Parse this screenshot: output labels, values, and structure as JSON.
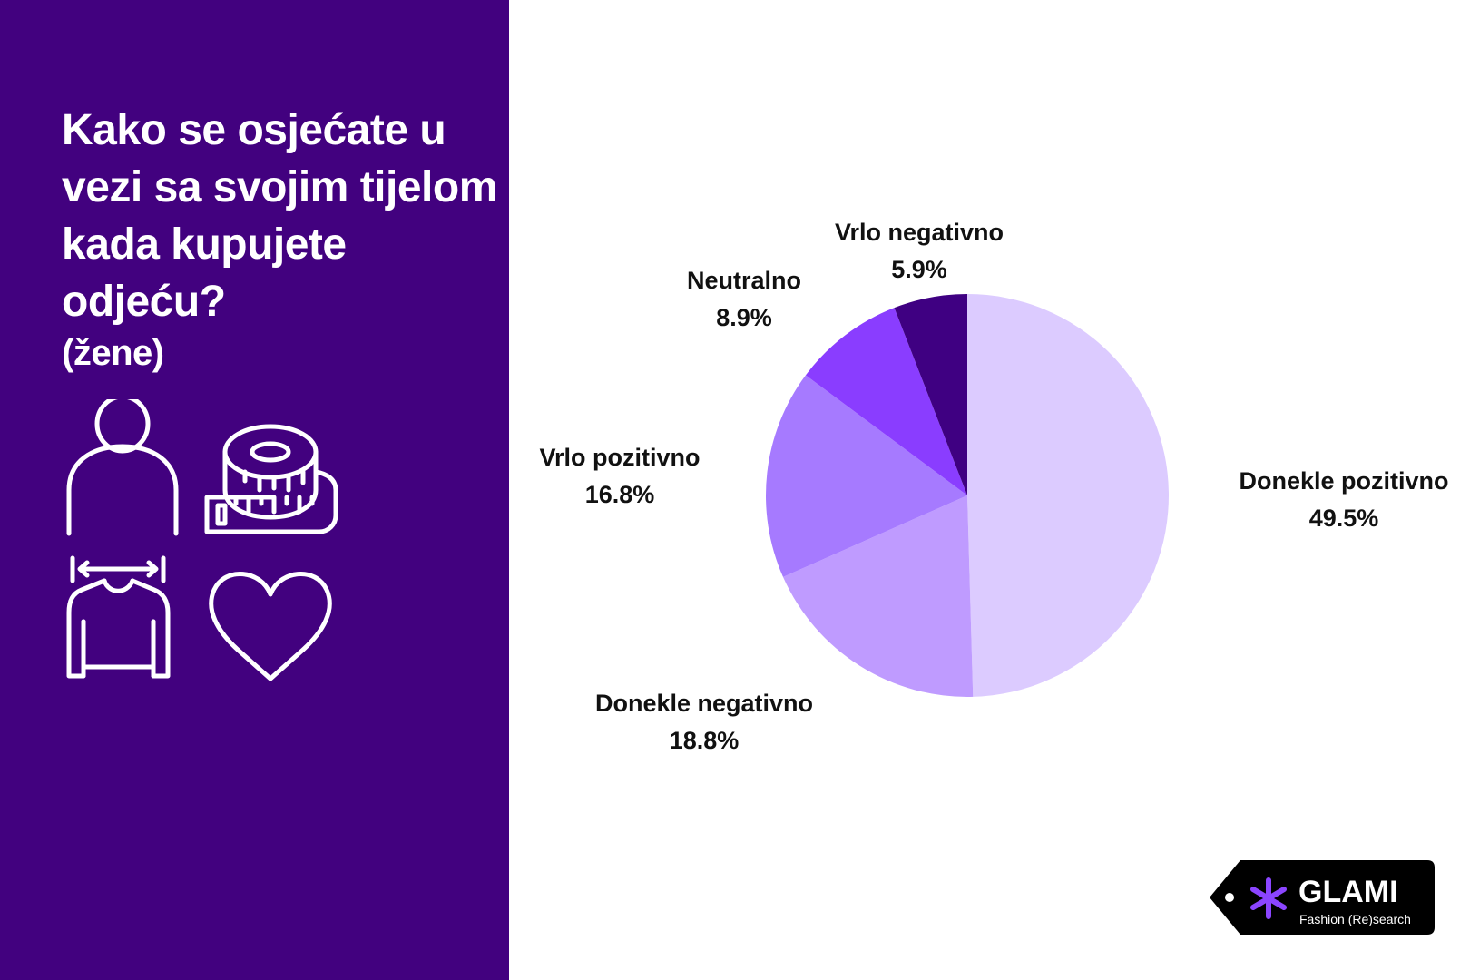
{
  "title": "Kako se osjećate u vezi sa svojim tijelom kada kupujete odjeću?",
  "subtitle": "(žene)",
  "icons": [
    "person-icon",
    "measuring-tape-icon",
    "sweater-width-icon",
    "heart-icon"
  ],
  "logo": {
    "brand": "GLAMI",
    "tagline": "Fashion (Re)search"
  },
  "chart_data": {
    "type": "pie",
    "title": "Kako se osjećate u vezi sa svojim tijelom kada kupujete odjeću? (žene)",
    "start": "top, clockwise",
    "slices": [
      {
        "label": "Donekle pozitivno",
        "value": 49.5,
        "display": "49.5%",
        "color": "#dccbff"
      },
      {
        "label": "Donekle negativno",
        "value": 18.8,
        "display": "18.8%",
        "color": "#bf9bff"
      },
      {
        "label": "Vrlo pozitivno",
        "value": 16.8,
        "display": "16.8%",
        "color": "#a67aff"
      },
      {
        "label": "Neutralno",
        "value": 8.9,
        "display": "8.9%",
        "color": "#8a3dff"
      },
      {
        "label": "Vrlo negativno",
        "value": 5.9,
        "display": "5.9%",
        "color": "#3f0082"
      }
    ]
  }
}
